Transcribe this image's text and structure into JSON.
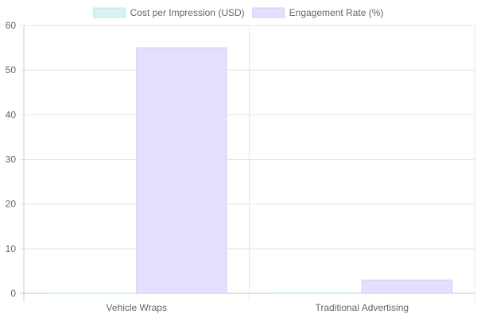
{
  "chart_data": {
    "type": "bar",
    "categories": [
      "Vehicle Wraps",
      "Traditional Advertising"
    ],
    "series": [
      {
        "name": "Cost per Impression (USD)",
        "values": [
          0.05,
          0.1
        ],
        "fill": "#d9f3f3",
        "stroke": "#b8e9e9"
      },
      {
        "name": "Engagement Rate (%)",
        "values": [
          55,
          3
        ],
        "fill": "#e6defe",
        "stroke": "#d6cbfb"
      }
    ],
    "ylim": [
      0,
      60
    ],
    "yticks": [
      0,
      10,
      20,
      30,
      40,
      50,
      60
    ],
    "grid": true,
    "legend_position": "top"
  }
}
